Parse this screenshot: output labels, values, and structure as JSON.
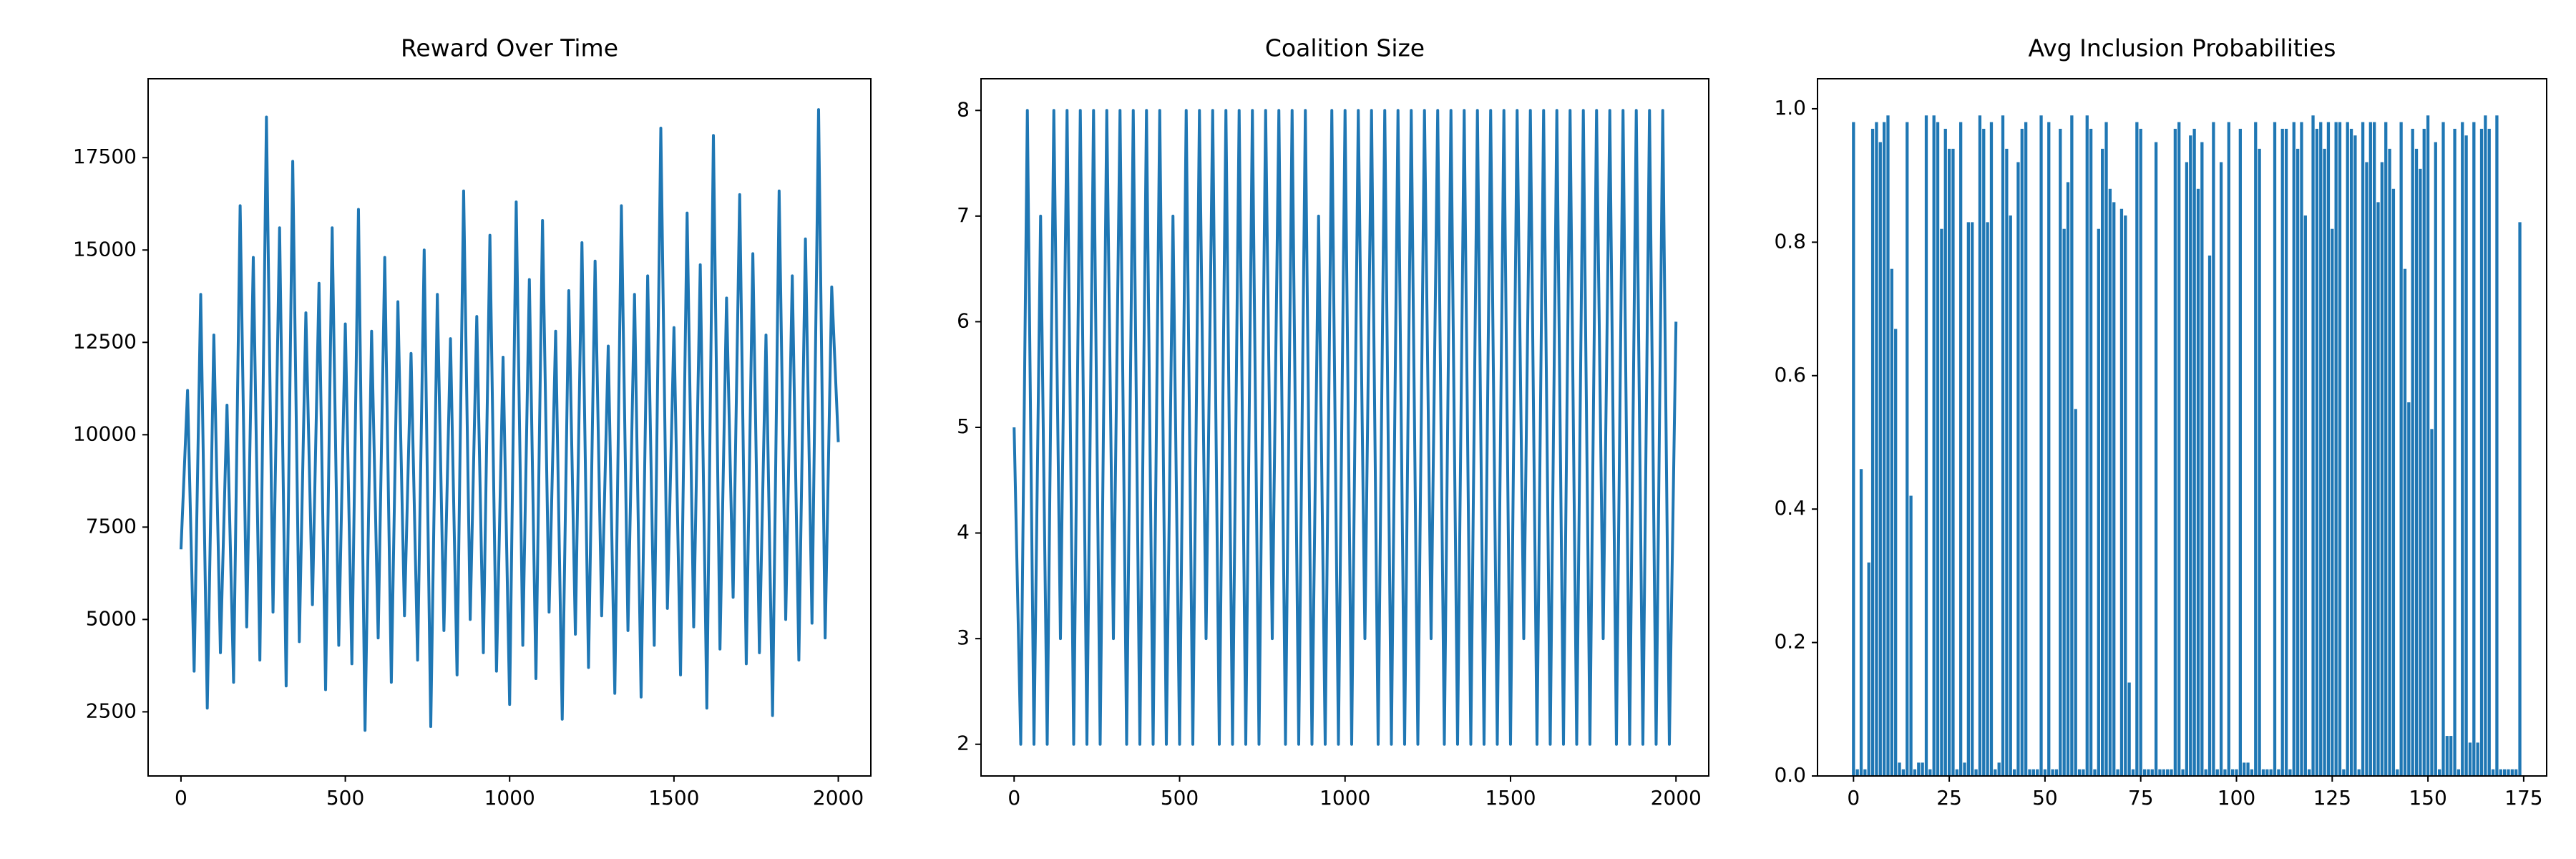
{
  "chart_data": [
    {
      "type": "line",
      "title": "Reward Over Time",
      "color": "#1f77b4",
      "x": [
        0,
        20,
        40,
        60,
        80,
        100,
        120,
        140,
        160,
        180,
        200,
        220,
        240,
        260,
        280,
        300,
        320,
        340,
        360,
        380,
        400,
        420,
        440,
        460,
        480,
        500,
        520,
        540,
        560,
        580,
        600,
        620,
        640,
        660,
        680,
        700,
        720,
        740,
        760,
        780,
        800,
        820,
        840,
        860,
        880,
        900,
        920,
        940,
        960,
        980,
        1000,
        1020,
        1040,
        1060,
        1080,
        1100,
        1120,
        1140,
        1160,
        1180,
        1200,
        1220,
        1240,
        1260,
        1280,
        1300,
        1320,
        1340,
        1360,
        1380,
        1400,
        1420,
        1440,
        1460,
        1480,
        1500,
        1520,
        1540,
        1560,
        1580,
        1600,
        1620,
        1640,
        1660,
        1680,
        1700,
        1720,
        1740,
        1760,
        1780,
        1800,
        1820,
        1840,
        1860,
        1880,
        1900,
        1920,
        1940,
        1960,
        1980,
        2000
      ],
      "values": [
        6900,
        11200,
        3600,
        13800,
        2600,
        12700,
        4100,
        10800,
        3300,
        16200,
        4800,
        14800,
        3900,
        18600,
        5200,
        15600,
        3200,
        17400,
        4400,
        13300,
        5400,
        14100,
        3100,
        15600,
        4300,
        13000,
        3800,
        16100,
        2000,
        12800,
        4500,
        14800,
        3300,
        13600,
        5100,
        12200,
        3900,
        15000,
        2100,
        13800,
        4700,
        12600,
        3500,
        16600,
        5000,
        13200,
        4100,
        15400,
        3600,
        12100,
        2700,
        16300,
        4300,
        14200,
        3400,
        15800,
        5200,
        12800,
        2300,
        13900,
        4600,
        15200,
        3700,
        14700,
        5100,
        12400,
        3000,
        16200,
        4700,
        13800,
        2900,
        14300,
        4300,
        18300,
        5300,
        12900,
        3500,
        16000,
        4800,
        14600,
        2600,
        18100,
        4200,
        13700,
        5600,
        16500,
        3800,
        14900,
        4100,
        12700,
        2400,
        16600,
        5000,
        14300,
        3900,
        15300,
        4900,
        18800,
        4500,
        14000,
        9800
      ],
      "xlim": [
        -100,
        2099
      ],
      "ylim": [
        764,
        19636
      ],
      "xticks": [
        0,
        500,
        1000,
        1500,
        2000
      ],
      "yticks": [
        2500,
        5000,
        7500,
        10000,
        12500,
        15000,
        17500
      ]
    },
    {
      "type": "line",
      "title": "Coalition Size",
      "color": "#1f77b4",
      "x": [
        0,
        20,
        40,
        60,
        80,
        100,
        120,
        140,
        160,
        180,
        200,
        220,
        240,
        260,
        280,
        300,
        320,
        340,
        360,
        380,
        400,
        420,
        440,
        460,
        480,
        500,
        520,
        540,
        560,
        580,
        600,
        620,
        640,
        660,
        680,
        700,
        720,
        740,
        760,
        780,
        800,
        820,
        840,
        860,
        880,
        900,
        920,
        940,
        960,
        980,
        1000,
        1020,
        1040,
        1060,
        1080,
        1100,
        1120,
        1140,
        1160,
        1180,
        1200,
        1220,
        1240,
        1260,
        1280,
        1300,
        1320,
        1340,
        1360,
        1380,
        1400,
        1420,
        1440,
        1460,
        1480,
        1500,
        1520,
        1540,
        1560,
        1580,
        1600,
        1620,
        1640,
        1660,
        1680,
        1700,
        1720,
        1740,
        1760,
        1780,
        1800,
        1820,
        1840,
        1860,
        1880,
        1900,
        1920,
        1940,
        1960,
        1980,
        2000
      ],
      "values": [
        5,
        2,
        8,
        2,
        7,
        2,
        8,
        3,
        8,
        2,
        8,
        2,
        8,
        2,
        8,
        3,
        8,
        2,
        8,
        2,
        8,
        2,
        8,
        2,
        7,
        2,
        8,
        2,
        8,
        3,
        8,
        2,
        8,
        2,
        8,
        2,
        8,
        2,
        8,
        3,
        8,
        2,
        8,
        2,
        8,
        2,
        7,
        2,
        8,
        2,
        8,
        2,
        8,
        3,
        8,
        2,
        8,
        2,
        8,
        2,
        8,
        2,
        8,
        3,
        8,
        2,
        8,
        2,
        8,
        2,
        8,
        2,
        8,
        2,
        8,
        2,
        8,
        3,
        8,
        2,
        8,
        2,
        8,
        2,
        8,
        2,
        8,
        2,
        8,
        3,
        8,
        2,
        8,
        2,
        8,
        2,
        8,
        2,
        8,
        2,
        6
      ],
      "xlim": [
        -100,
        2099
      ],
      "ylim": [
        1.7,
        8.3
      ],
      "xticks": [
        0,
        500,
        1000,
        1500,
        2000
      ],
      "yticks": [
        2,
        3,
        4,
        5,
        6,
        7,
        8
      ]
    },
    {
      "type": "bar",
      "title": "Avg Inclusion Probabilities",
      "color": "#1f77b4",
      "x": [
        0,
        1,
        2,
        3,
        4,
        5,
        6,
        7,
        8,
        9,
        10,
        11,
        12,
        13,
        14,
        15,
        16,
        17,
        18,
        19,
        20,
        21,
        22,
        23,
        24,
        25,
        26,
        27,
        28,
        29,
        30,
        31,
        32,
        33,
        34,
        35,
        36,
        37,
        38,
        39,
        40,
        41,
        42,
        43,
        44,
        45,
        46,
        47,
        48,
        49,
        50,
        51,
        52,
        53,
        54,
        55,
        56,
        57,
        58,
        59,
        60,
        61,
        62,
        63,
        64,
        65,
        66,
        67,
        68,
        69,
        70,
        71,
        72,
        73,
        74,
        75,
        76,
        77,
        78,
        79,
        80,
        81,
        82,
        83,
        84,
        85,
        86,
        87,
        88,
        89,
        90,
        91,
        92,
        93,
        94,
        95,
        96,
        97,
        98,
        99,
        100,
        101,
        102,
        103,
        104,
        105,
        106,
        107,
        108,
        109,
        110,
        111,
        112,
        113,
        114,
        115,
        116,
        117,
        118,
        119,
        120,
        121,
        122,
        123,
        124,
        125,
        126,
        127,
        128,
        129,
        130,
        131,
        132,
        133,
        134,
        135,
        136,
        137,
        138,
        139,
        140,
        141,
        142,
        143,
        144,
        145,
        146,
        147,
        148,
        149,
        150,
        151,
        152,
        153,
        154,
        155,
        156,
        157,
        158,
        159,
        160,
        161,
        162,
        163,
        164,
        165,
        166,
        167,
        168,
        169,
        170,
        171,
        172,
        173,
        174
      ],
      "values": [
        0.98,
        0.01,
        0.46,
        0.01,
        0.32,
        0.97,
        0.98,
        0.95,
        0.98,
        0.99,
        0.76,
        0.67,
        0.02,
        0.01,
        0.98,
        0.42,
        0.01,
        0.02,
        0.02,
        0.99,
        0.01,
        0.99,
        0.98,
        0.82,
        0.97,
        0.94,
        0.94,
        0.01,
        0.98,
        0.02,
        0.83,
        0.83,
        0.01,
        0.99,
        0.97,
        0.83,
        0.98,
        0.01,
        0.02,
        0.99,
        0.94,
        0.84,
        0.01,
        0.92,
        0.97,
        0.98,
        0.01,
        0.01,
        0.01,
        0.99,
        0.01,
        0.98,
        0.01,
        0.01,
        0.97,
        0.82,
        0.89,
        0.99,
        0.55,
        0.01,
        0.01,
        0.99,
        0.97,
        0.01,
        0.82,
        0.94,
        0.98,
        0.88,
        0.86,
        0.01,
        0.85,
        0.84,
        0.14,
        0.01,
        0.98,
        0.97,
        0.01,
        0.01,
        0.01,
        0.95,
        0.01,
        0.01,
        0.01,
        0.01,
        0.97,
        0.98,
        0.01,
        0.92,
        0.96,
        0.97,
        0.88,
        0.95,
        0.01,
        0.78,
        0.98,
        0.01,
        0.92,
        0.01,
        0.98,
        0.01,
        0.01,
        0.97,
        0.02,
        0.02,
        0.01,
        0.98,
        0.94,
        0.01,
        0.01,
        0.01,
        0.98,
        0.01,
        0.97,
        0.97,
        0.01,
        0.98,
        0.94,
        0.98,
        0.84,
        0.01,
        0.99,
        0.97,
        0.98,
        0.94,
        0.98,
        0.82,
        0.98,
        0.98,
        0.01,
        0.98,
        0.97,
        0.96,
        0.01,
        0.98,
        0.92,
        0.98,
        0.98,
        0.86,
        0.92,
        0.98,
        0.94,
        0.88,
        0.01,
        0.98,
        0.76,
        0.56,
        0.97,
        0.94,
        0.91,
        0.97,
        0.99,
        0.52,
        0.95,
        0.01,
        0.98,
        0.06,
        0.06,
        0.97,
        0.01,
        0.98,
        0.96,
        0.05,
        0.98,
        0.05,
        0.97,
        0.99,
        0.97,
        0.01,
        0.99,
        0.01,
        0.01,
        0.01,
        0.01,
        0.01,
        0.83
      ],
      "xlim": [
        -9.4,
        181
      ],
      "ylim": [
        0,
        1.045
      ],
      "xticks": [
        0,
        25,
        50,
        75,
        100,
        125,
        150,
        175
      ],
      "yticks": [
        {
          "value": 0,
          "label": "0.0"
        },
        0.2,
        0.4,
        0.6,
        0.8,
        {
          "value": 1,
          "label": "1.0"
        }
      ]
    }
  ]
}
